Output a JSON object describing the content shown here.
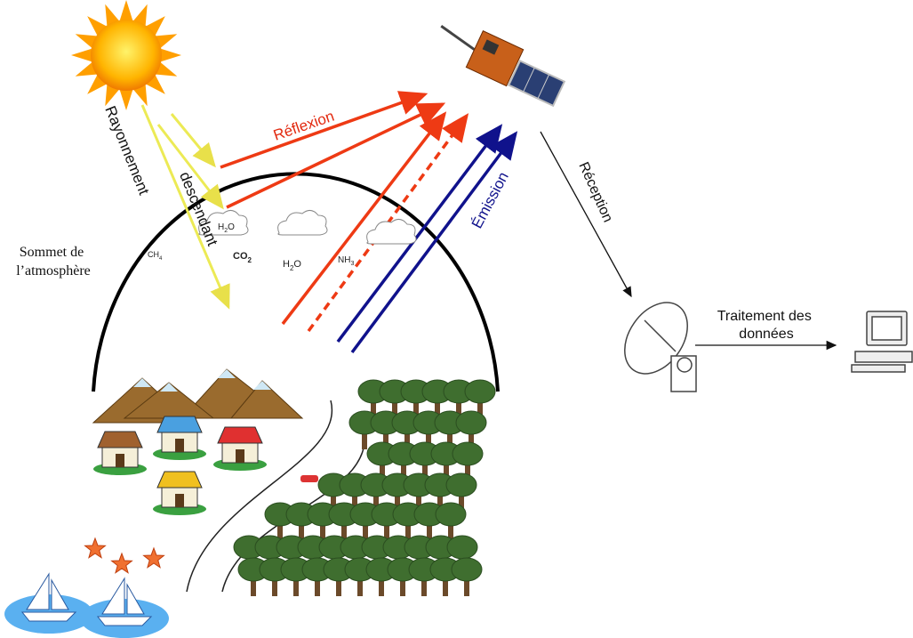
{
  "labels": {
    "downwelling": [
      "Rayonnement",
      "descendant"
    ],
    "reflection": "Réflexion",
    "emission": "Émission",
    "reception": "Réception",
    "atmosphere_top": [
      "Sommet de",
      "l’atmosphère"
    ],
    "processing": [
      "Traitement des",
      "données"
    ]
  },
  "molecules": [
    {
      "parts": [
        "H",
        "2",
        "O"
      ]
    },
    {
      "parts": [
        "CH",
        "4"
      ]
    },
    {
      "parts": [
        "CO",
        "2"
      ]
    },
    {
      "parts": [
        "H",
        "2",
        "O"
      ]
    },
    {
      "parts": [
        "NH",
        "3"
      ]
    }
  ]
}
